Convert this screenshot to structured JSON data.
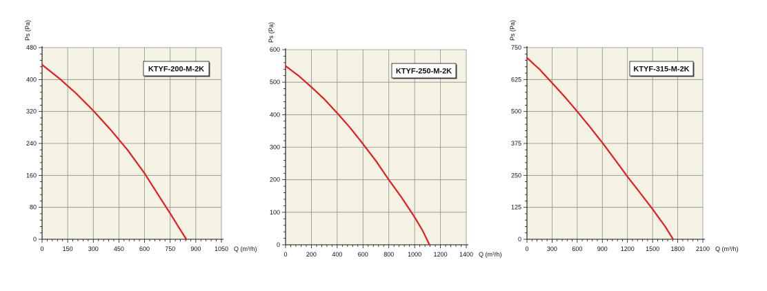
{
  "colors": {
    "plot_background": "#f3f2e3",
    "grid": "#8c8f84",
    "curve": "#e31b23",
    "axis": "#111111"
  },
  "chart_data": [
    {
      "type": "line",
      "model_label": "KTYF-200-M-2K",
      "ylabel": "Ps (Pa)",
      "xlabel": "Q (m³/h)",
      "xlim": [
        0,
        1050
      ],
      "ylim": [
        0,
        480
      ],
      "x_ticks": [
        0,
        150,
        300,
        450,
        600,
        750,
        900,
        1050
      ],
      "y_ticks": [
        0,
        80,
        160,
        240,
        320,
        400,
        480
      ],
      "legend_position": "top-right",
      "grid": true,
      "series": [
        {
          "x": [
            0,
            100,
            200,
            300,
            400,
            500,
            600,
            700,
            760,
            800,
            845
          ],
          "y": [
            437,
            403,
            365,
            322,
            275,
            224,
            165,
            98,
            58,
            30,
            0
          ]
        }
      ]
    },
    {
      "type": "line",
      "model_label": "KTYF-250-M-2K",
      "ylabel": "Ps (Pa)",
      "xlabel": "Q (m³/h)",
      "xlim": [
        0,
        1400
      ],
      "ylim": [
        0,
        600
      ],
      "x_ticks": [
        0,
        200,
        400,
        600,
        800,
        1000,
        1200,
        1400
      ],
      "y_ticks": [
        0,
        100,
        200,
        300,
        400,
        500,
        600
      ],
      "legend_position": "top-right",
      "grid": true,
      "series": [
        {
          "x": [
            0,
            100,
            200,
            300,
            400,
            500,
            600,
            700,
            800,
            900,
            1000,
            1060,
            1115
          ],
          "y": [
            550,
            520,
            485,
            448,
            405,
            360,
            310,
            258,
            200,
            145,
            85,
            45,
            0
          ]
        }
      ]
    },
    {
      "type": "line",
      "model_label": "KTYF-315-M-2K",
      "ylabel": "Ps (Pa)",
      "xlabel": "Q (m³/h)",
      "xlim": [
        0,
        2100
      ],
      "ylim": [
        0,
        750
      ],
      "x_ticks": [
        0,
        300,
        600,
        900,
        1200,
        1500,
        1800,
        2100
      ],
      "y_ticks": [
        0,
        125,
        250,
        375,
        500,
        625,
        750
      ],
      "legend_position": "top-right",
      "grid": true,
      "series": [
        {
          "x": [
            0,
            150,
            300,
            450,
            600,
            750,
            900,
            1050,
            1200,
            1350,
            1500,
            1650,
            1745
          ],
          "y": [
            710,
            665,
            612,
            558,
            500,
            440,
            378,
            312,
            245,
            182,
            118,
            50,
            0
          ]
        }
      ]
    }
  ]
}
